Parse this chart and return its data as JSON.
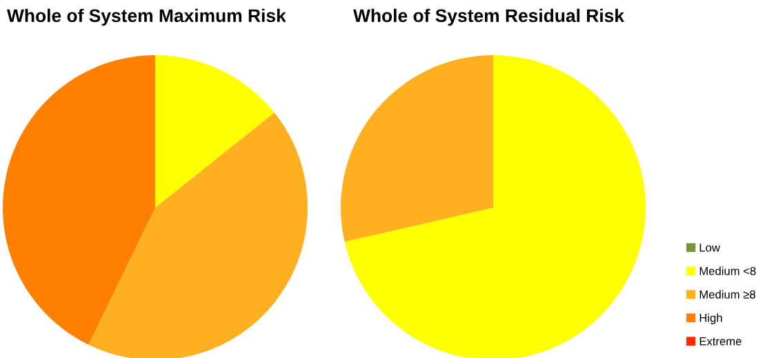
{
  "chart_data": [
    {
      "type": "pie",
      "title": "Whole of System Maximum Risk",
      "categories": [
        "Low",
        "Medium <8",
        "Medium ≥8",
        "High",
        "Extreme"
      ],
      "values": [
        0,
        14.3,
        42.9,
        42.8,
        0
      ],
      "colors": [
        "#77933c",
        "#ffff00",
        "#ffb020",
        "#ff8000",
        "#ff2a00"
      ],
      "legend": "right"
    },
    {
      "type": "pie",
      "title": "Whole of System Residual Risk",
      "categories": [
        null,
        null,
        null,
        null,
        null
      ],
      "values": [
        0,
        71.4,
        28.6,
        0,
        0
      ],
      "colors": [
        "#77933c",
        "#ffff00",
        "#ffb020",
        "#ff8000",
        "#ff2a00"
      ]
    }
  ]
}
